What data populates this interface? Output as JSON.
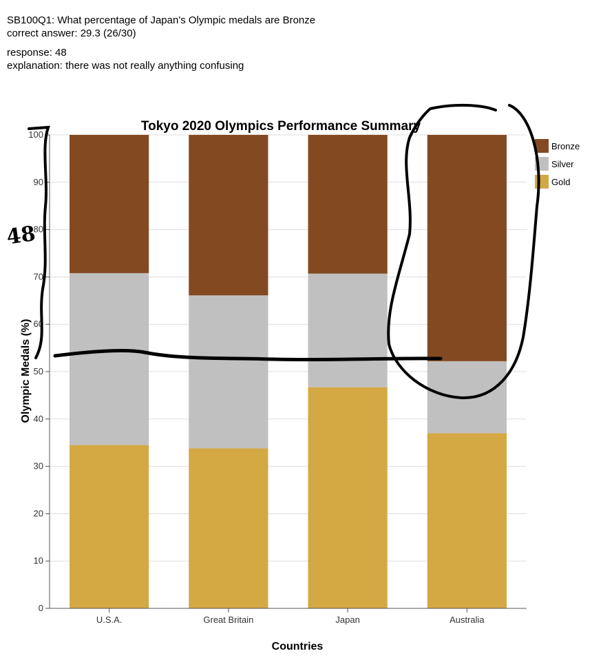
{
  "header": {
    "question": "SB100Q1: What percentage of Japan's Olympic medals are Bronze",
    "correct_answer": "correct answer: 29.3 (26/30)",
    "response": "response: 48",
    "explanation": "explanation: there was not really anything confusing"
  },
  "annotation": {
    "handwritten_number": "48"
  },
  "chart_data": {
    "type": "bar",
    "stacked": true,
    "title": "Tokyo 2020 Olympics Performance Summary",
    "xlabel": "Countries",
    "ylabel": "Olympic Medals (%)",
    "ylim": [
      0,
      100
    ],
    "yticks": [
      0,
      10,
      20,
      30,
      40,
      50,
      60,
      70,
      80,
      90,
      100
    ],
    "grid": true,
    "legend_position": "right",
    "categories": [
      "U.S.A.",
      "Great Britain",
      "Japan",
      "Australia"
    ],
    "series": [
      {
        "name": "Gold",
        "color": "#D4A843",
        "values": [
          34.5,
          33.8,
          46.7,
          37.0
        ]
      },
      {
        "name": "Silver",
        "color": "#C0C0C0",
        "values": [
          36.3,
          32.3,
          24.0,
          15.2
        ]
      },
      {
        "name": "Bronze",
        "color": "#834A22",
        "values": [
          29.2,
          33.9,
          29.3,
          47.8
        ]
      }
    ],
    "legend_order": [
      "Bronze",
      "Silver",
      "Gold"
    ]
  }
}
